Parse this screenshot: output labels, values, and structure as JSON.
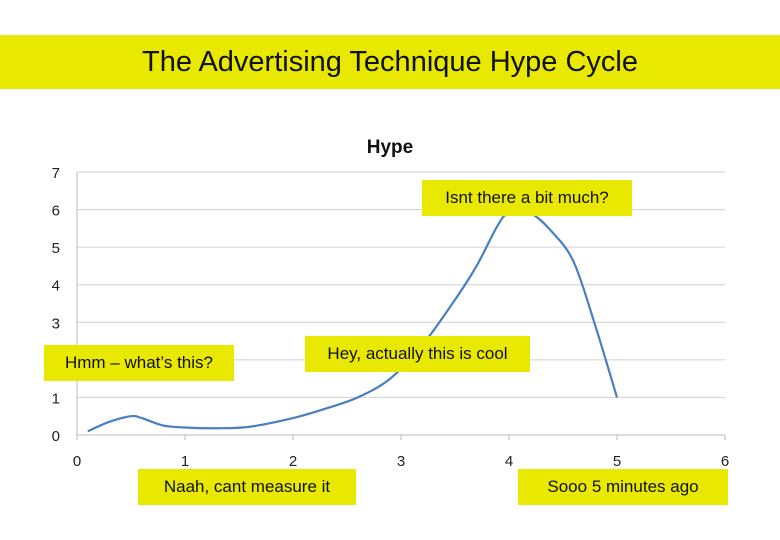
{
  "slide": {
    "title": "The Advertising Technique Hype Cycle",
    "accent_color": "#e8e800"
  },
  "chart_data": {
    "type": "line",
    "title": "Hype",
    "xlabel": "",
    "ylabel": "",
    "xlim": [
      0,
      6
    ],
    "ylim": [
      0,
      7
    ],
    "xticks": [
      0,
      1,
      2,
      3,
      4,
      5,
      6
    ],
    "yticks": [
      0,
      1,
      2,
      3,
      4,
      5,
      6,
      7
    ],
    "grid": "horizontal",
    "line_color": "#4a7fc0",
    "series": [
      {
        "x": [
          0.1,
          0.3,
          0.5,
          0.6,
          0.8,
          1.0,
          1.3,
          1.6,
          2.0,
          2.3,
          2.6,
          2.9,
          3.2,
          3.5,
          3.7,
          3.9,
          4.0,
          4.2,
          4.4,
          4.6,
          4.8,
          5.0
        ],
        "y": [
          0.1,
          0.35,
          0.5,
          0.45,
          0.25,
          0.2,
          0.18,
          0.22,
          0.45,
          0.7,
          1.0,
          1.5,
          2.4,
          3.6,
          4.5,
          5.6,
          5.9,
          5.9,
          5.4,
          4.6,
          2.9,
          1.0
        ]
      }
    ],
    "annotations": [
      "Isnt there a bit much?",
      "Hmm – what’s this?",
      "Hey, actually this is cool",
      "Naah, cant measure it",
      "Sooo 5 minutes ago"
    ]
  }
}
